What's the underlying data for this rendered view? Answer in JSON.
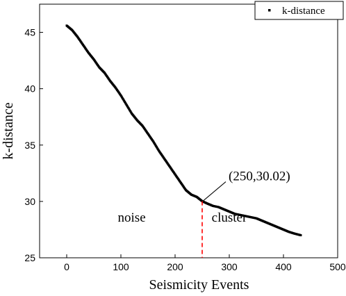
{
  "chart_data": {
    "type": "scatter",
    "xlabel": "Seismicity Events",
    "ylabel": "k-distance",
    "xlim": [
      -50,
      500
    ],
    "ylim": [
      25,
      47.5
    ],
    "x_ticks": [
      0,
      100,
      200,
      300,
      400,
      500
    ],
    "y_ticks": [
      25,
      30,
      35,
      40,
      45
    ],
    "x_tick_labels": [
      "0",
      "100",
      "200",
      "300",
      "400",
      "500"
    ],
    "y_tick_labels": [
      "25",
      "30",
      "35",
      "40",
      "45"
    ],
    "grid": false,
    "legend_position": "top-right",
    "series": [
      {
        "name": "k-distance",
        "color": "#000000",
        "marker": "square",
        "x_start": 0,
        "x_end": 432,
        "anchors": [
          [
            0,
            45.6
          ],
          [
            10,
            45.2
          ],
          [
            20,
            44.6
          ],
          [
            30,
            43.9
          ],
          [
            40,
            43.2
          ],
          [
            50,
            42.6
          ],
          [
            60,
            41.9
          ],
          [
            70,
            41.4
          ],
          [
            80,
            40.7
          ],
          [
            90,
            40.1
          ],
          [
            100,
            39.4
          ],
          [
            110,
            38.6
          ],
          [
            120,
            37.8
          ],
          [
            130,
            37.2
          ],
          [
            140,
            36.7
          ],
          [
            150,
            36.0
          ],
          [
            160,
            35.3
          ],
          [
            170,
            34.5
          ],
          [
            180,
            33.8
          ],
          [
            190,
            33.1
          ],
          [
            200,
            32.4
          ],
          [
            210,
            31.7
          ],
          [
            220,
            31.0
          ],
          [
            230,
            30.6
          ],
          [
            240,
            30.4
          ],
          [
            250,
            30.02
          ],
          [
            260,
            29.8
          ],
          [
            270,
            29.6
          ],
          [
            280,
            29.5
          ],
          [
            290,
            29.3
          ],
          [
            300,
            29.1
          ],
          [
            310,
            28.9
          ],
          [
            320,
            28.8
          ],
          [
            330,
            28.7
          ],
          [
            340,
            28.6
          ],
          [
            350,
            28.5
          ],
          [
            360,
            28.3
          ],
          [
            370,
            28.1
          ],
          [
            380,
            27.9
          ],
          [
            390,
            27.7
          ],
          [
            400,
            27.5
          ],
          [
            410,
            27.3
          ],
          [
            420,
            27.15
          ],
          [
            432,
            27.0
          ]
        ]
      }
    ],
    "annotations": {
      "point_label": "(250,30.02)",
      "point": [
        250,
        30.02
      ],
      "vline_x": 250,
      "vline_color": "#ff0000",
      "noise_label": "noise",
      "cluster_label": "cluster"
    }
  }
}
